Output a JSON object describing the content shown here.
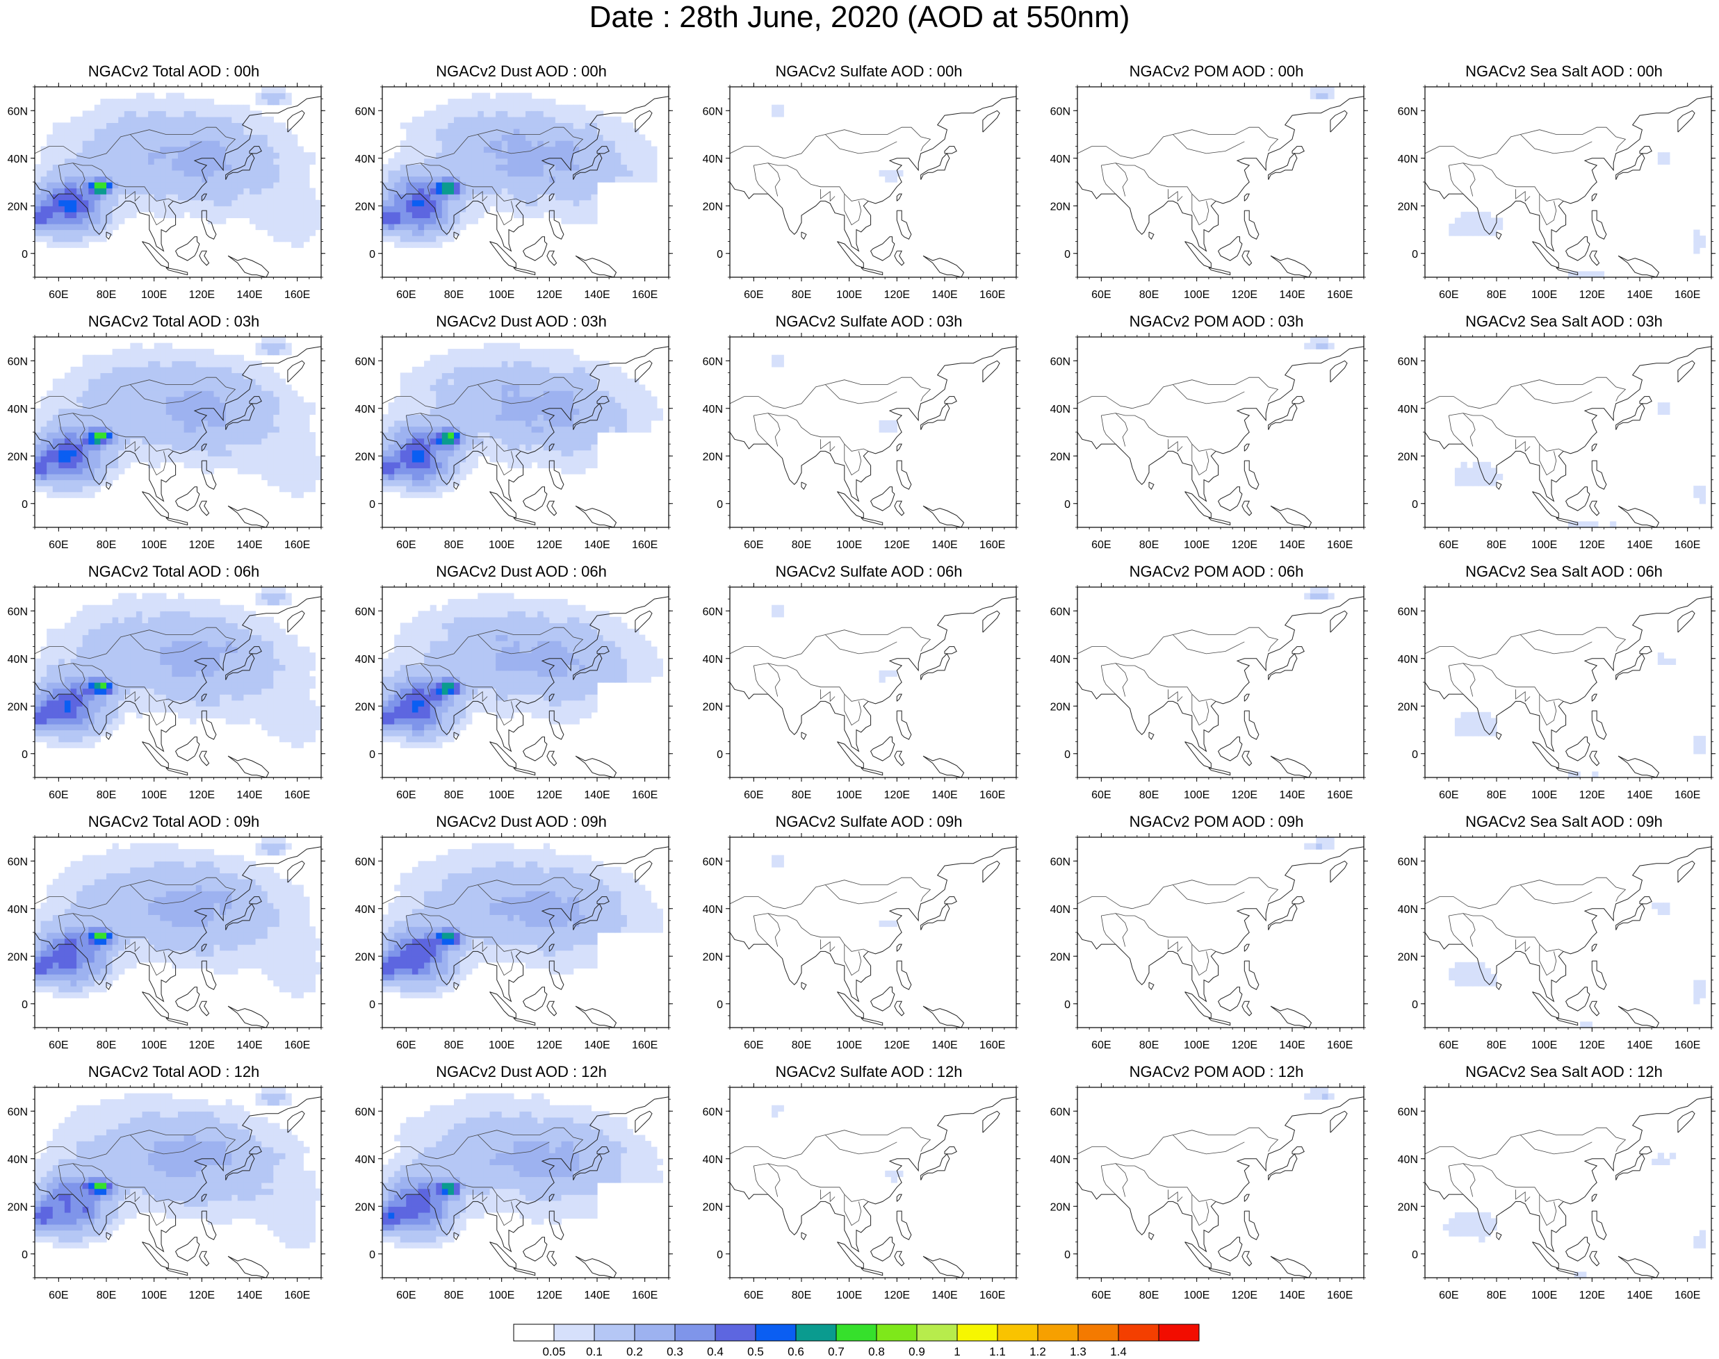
{
  "title": "Date : 28th June, 2020 (AOD at 550nm)",
  "axes": {
    "lon_ticks": [
      {
        "value": 60,
        "label": "60E"
      },
      {
        "value": 80,
        "label": "80E"
      },
      {
        "value": 100,
        "label": "100E"
      },
      {
        "value": 120,
        "label": "120E"
      },
      {
        "value": 140,
        "label": "140E"
      },
      {
        "value": 160,
        "label": "160E"
      }
    ],
    "lat_ticks": [
      {
        "value": 0,
        "label": "0"
      },
      {
        "value": 20,
        "label": "20N"
      },
      {
        "value": 40,
        "label": "40N"
      },
      {
        "value": 60,
        "label": "60N"
      }
    ],
    "lon_range": [
      50,
      170
    ],
    "lat_range": [
      -10,
      70
    ]
  },
  "variables": [
    {
      "id": "total",
      "intensity": 1.0,
      "palette": "dust-like"
    },
    {
      "id": "dust",
      "intensity": 0.95,
      "palette": "dust-like"
    },
    {
      "id": "sulfate",
      "intensity": 0.2,
      "palette": "sparse"
    },
    {
      "id": "pom",
      "intensity": 0.1,
      "palette": "sparse"
    },
    {
      "id": "seasalt",
      "intensity": 0.35,
      "palette": "marine"
    }
  ],
  "panels": [
    {
      "row": 0,
      "col": 0,
      "title": "NGACv2 Total AOD : 00h"
    },
    {
      "row": 0,
      "col": 1,
      "title": "NGACv2 Dust AOD : 00h"
    },
    {
      "row": 0,
      "col": 2,
      "title": "NGACv2 Sulfate AOD : 00h"
    },
    {
      "row": 0,
      "col": 3,
      "title": "NGACv2 POM AOD : 00h"
    },
    {
      "row": 0,
      "col": 4,
      "title": "NGACv2 Sea Salt AOD : 00h"
    },
    {
      "row": 1,
      "col": 0,
      "title": "NGACv2 Total AOD : 03h"
    },
    {
      "row": 1,
      "col": 1,
      "title": "NGACv2 Dust AOD : 03h"
    },
    {
      "row": 1,
      "col": 2,
      "title": "NGACv2 Sulfate AOD : 03h"
    },
    {
      "row": 1,
      "col": 3,
      "title": "NGACv2 POM AOD : 03h"
    },
    {
      "row": 1,
      "col": 4,
      "title": "NGACv2 Sea Salt AOD : 03h"
    },
    {
      "row": 2,
      "col": 0,
      "title": "NGACv2 Total AOD : 06h"
    },
    {
      "row": 2,
      "col": 1,
      "title": "NGACv2 Dust AOD : 06h"
    },
    {
      "row": 2,
      "col": 2,
      "title": "NGACv2 Sulfate AOD : 06h"
    },
    {
      "row": 2,
      "col": 3,
      "title": "NGACv2 POM AOD : 06h"
    },
    {
      "row": 2,
      "col": 4,
      "title": "NGACv2 Sea Salt AOD : 06h"
    },
    {
      "row": 3,
      "col": 0,
      "title": "NGACv2 Total AOD : 09h"
    },
    {
      "row": 3,
      "col": 1,
      "title": "NGACv2 Dust AOD : 09h"
    },
    {
      "row": 3,
      "col": 2,
      "title": "NGACv2 Sulfate AOD : 09h"
    },
    {
      "row": 3,
      "col": 3,
      "title": "NGACv2 POM AOD : 09h"
    },
    {
      "row": 3,
      "col": 4,
      "title": "NGACv2 Sea Salt  AOD : 09h"
    },
    {
      "row": 4,
      "col": 0,
      "title": "NGACv2 Total AOD  : 12h"
    },
    {
      "row": 4,
      "col": 1,
      "title": "NGACv2 Dust AOD : 12h"
    },
    {
      "row": 4,
      "col": 2,
      "title": "NGACv2 Sulfate AOD : 12h"
    },
    {
      "row": 4,
      "col": 3,
      "title": "NGACv2 POM  AOD : 12h"
    },
    {
      "row": 4,
      "col": 4,
      "title": "NGACv2 Sea Salt  AOD : 12h"
    }
  ],
  "colorbar": {
    "colors": [
      "#ffffff",
      "#d6e0fb",
      "#b5c7f5",
      "#9db2f0",
      "#7f95ea",
      "#5d66e0",
      "#0a5ef2",
      "#0a9b8f",
      "#36e02c",
      "#7ee81a",
      "#b7ec4c",
      "#f6f600",
      "#f9c300",
      "#f6a000",
      "#f47a00",
      "#f43f00",
      "#f20d00"
    ],
    "labels": [
      "0.05",
      "0.1",
      "0.2",
      "0.3",
      "0.4",
      "0.5",
      "0.6",
      "0.7",
      "0.8",
      "0.9",
      "1",
      "1.1",
      "1.2",
      "1.3",
      "1.4"
    ]
  }
}
